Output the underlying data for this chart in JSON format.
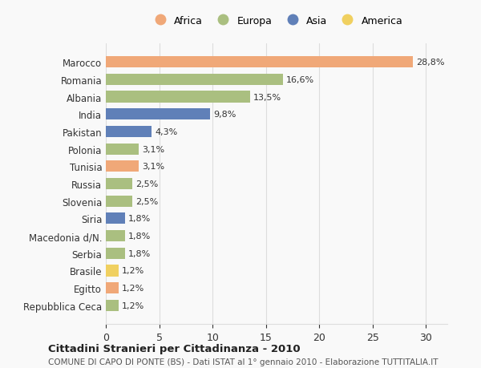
{
  "countries": [
    "Marocco",
    "Romania",
    "Albania",
    "India",
    "Pakistan",
    "Polonia",
    "Tunisia",
    "Russia",
    "Slovenia",
    "Siria",
    "Macedonia d/N.",
    "Serbia",
    "Brasile",
    "Egitto",
    "Repubblica Ceca"
  ],
  "values": [
    28.8,
    16.6,
    13.5,
    9.8,
    4.3,
    3.1,
    3.1,
    2.5,
    2.5,
    1.8,
    1.8,
    1.8,
    1.2,
    1.2,
    1.2
  ],
  "continents": [
    "Africa",
    "Europa",
    "Europa",
    "Asia",
    "Asia",
    "Europa",
    "Africa",
    "Europa",
    "Europa",
    "Asia",
    "Europa",
    "Europa",
    "America",
    "Africa",
    "Europa"
  ],
  "continent_colors": {
    "Africa": "#F0A878",
    "Europa": "#AABF80",
    "Asia": "#6080B8",
    "America": "#F0D060"
  },
  "legend_order": [
    "Africa",
    "Europa",
    "Asia",
    "America"
  ],
  "title": "Cittadini Stranieri per Cittadinanza - 2010",
  "subtitle": "COMUNE DI CAPO DI PONTE (BS) - Dati ISTAT al 1° gennaio 2010 - Elaborazione TUTTITALIA.IT",
  "xlim": [
    0,
    32
  ],
  "xticks": [
    0,
    5,
    10,
    15,
    20,
    25,
    30
  ],
  "background_color": "#f9f9f9",
  "grid_color": "#dddddd",
  "bar_height": 0.65
}
